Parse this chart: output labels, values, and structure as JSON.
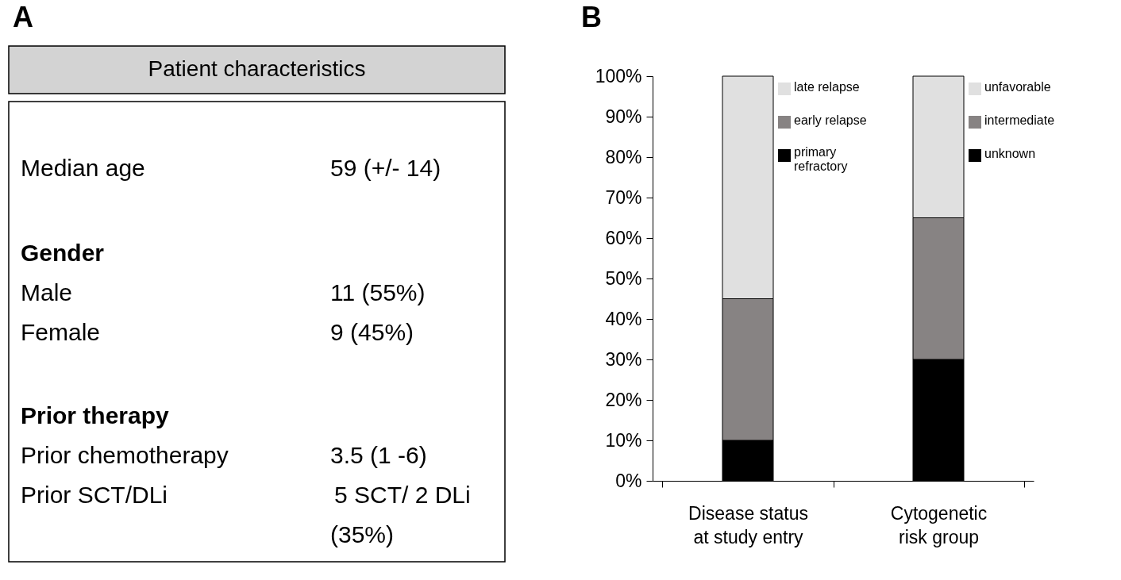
{
  "chart_data": [
    {
      "type": "other",
      "title": "Patient characteristics",
      "annotations": [
        "A",
        "Median age",
        "59 (+/- 14)",
        "Gender",
        "Male",
        "11 (55%)",
        "Female",
        "9 (45%)",
        "Prior therapy",
        "Prior chemotherapy",
        "3.5 (1 -6)",
        "Prior SCT/DLi",
        "5 SCT/ 2 DLi",
        "(35%)"
      ]
    },
    {
      "type": "bar",
      "title": "B",
      "categories": [
        "Disease status at study entry",
        "Cytogenetic risk group"
      ],
      "stacked": true,
      "series": [
        {
          "name": "primary refractory",
          "color": "#000000",
          "values": [
            10,
            null
          ]
        },
        {
          "name": "early relapse",
          "color": "#878383",
          "values": [
            35,
            null
          ]
        },
        {
          "name": "late relapse",
          "color": "#e0e0e0",
          "values": [
            55,
            null
          ]
        },
        {
          "name": "unknown",
          "color": "#000000",
          "values": [
            null,
            30
          ]
        },
        {
          "name": "intermediate",
          "color": "#878383",
          "values": [
            null,
            35
          ]
        },
        {
          "name": "unfavorable",
          "color": "#e0e0e0",
          "values": [
            null,
            35
          ]
        }
      ],
      "ylim": [
        0,
        100
      ],
      "yticks": [
        {
          "value": 0,
          "label": "0%"
        },
        {
          "value": 10,
          "label": "10%"
        },
        {
          "value": 20,
          "label": "20%"
        },
        {
          "value": 30,
          "label": "30%"
        },
        {
          "value": 40,
          "label": "40%"
        },
        {
          "value": 50,
          "label": "50%"
        },
        {
          "value": 60,
          "label": "60%"
        },
        {
          "value": 70,
          "label": "70%"
        },
        {
          "value": 80,
          "label": "80%"
        },
        {
          "value": 90,
          "label": "90%"
        },
        {
          "value": 100,
          "label": "100%"
        }
      ],
      "grid": false,
      "legend": "right"
    }
  ]
}
